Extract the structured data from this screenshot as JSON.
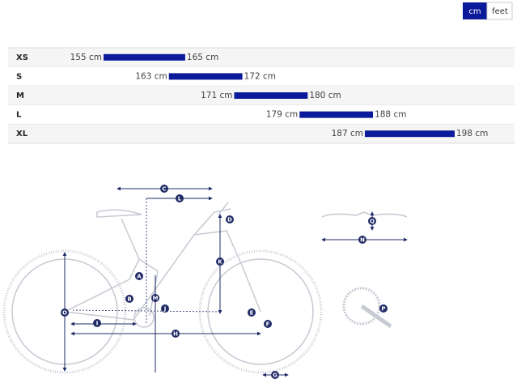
{
  "toggle": {
    "options": [
      "cm",
      "feet"
    ],
    "active": "cm"
  },
  "chart_data": {
    "type": "range-bar",
    "color": "#0a1a9a",
    "categories": [
      "XS",
      "S",
      "M",
      "L",
      "XL"
    ],
    "values": [
      [
        155,
        165
      ],
      [
        163,
        172
      ],
      [
        171,
        180
      ],
      [
        179,
        188
      ],
      [
        187,
        198
      ]
    ],
    "value_labels": [
      [
        "155 cm",
        "165 cm"
      ],
      [
        "163 cm",
        "172 cm"
      ],
      [
        "171 cm",
        "180 cm"
      ],
      [
        "179 cm",
        "188 cm"
      ],
      [
        "187 cm",
        "198 cm"
      ]
    ]
  },
  "diagram": {
    "labels": [
      "C",
      "L",
      "D",
      "K",
      "A",
      "B",
      "M",
      "J",
      "O",
      "I",
      "H",
      "E",
      "F",
      "G",
      "Q",
      "N",
      "P"
    ]
  }
}
